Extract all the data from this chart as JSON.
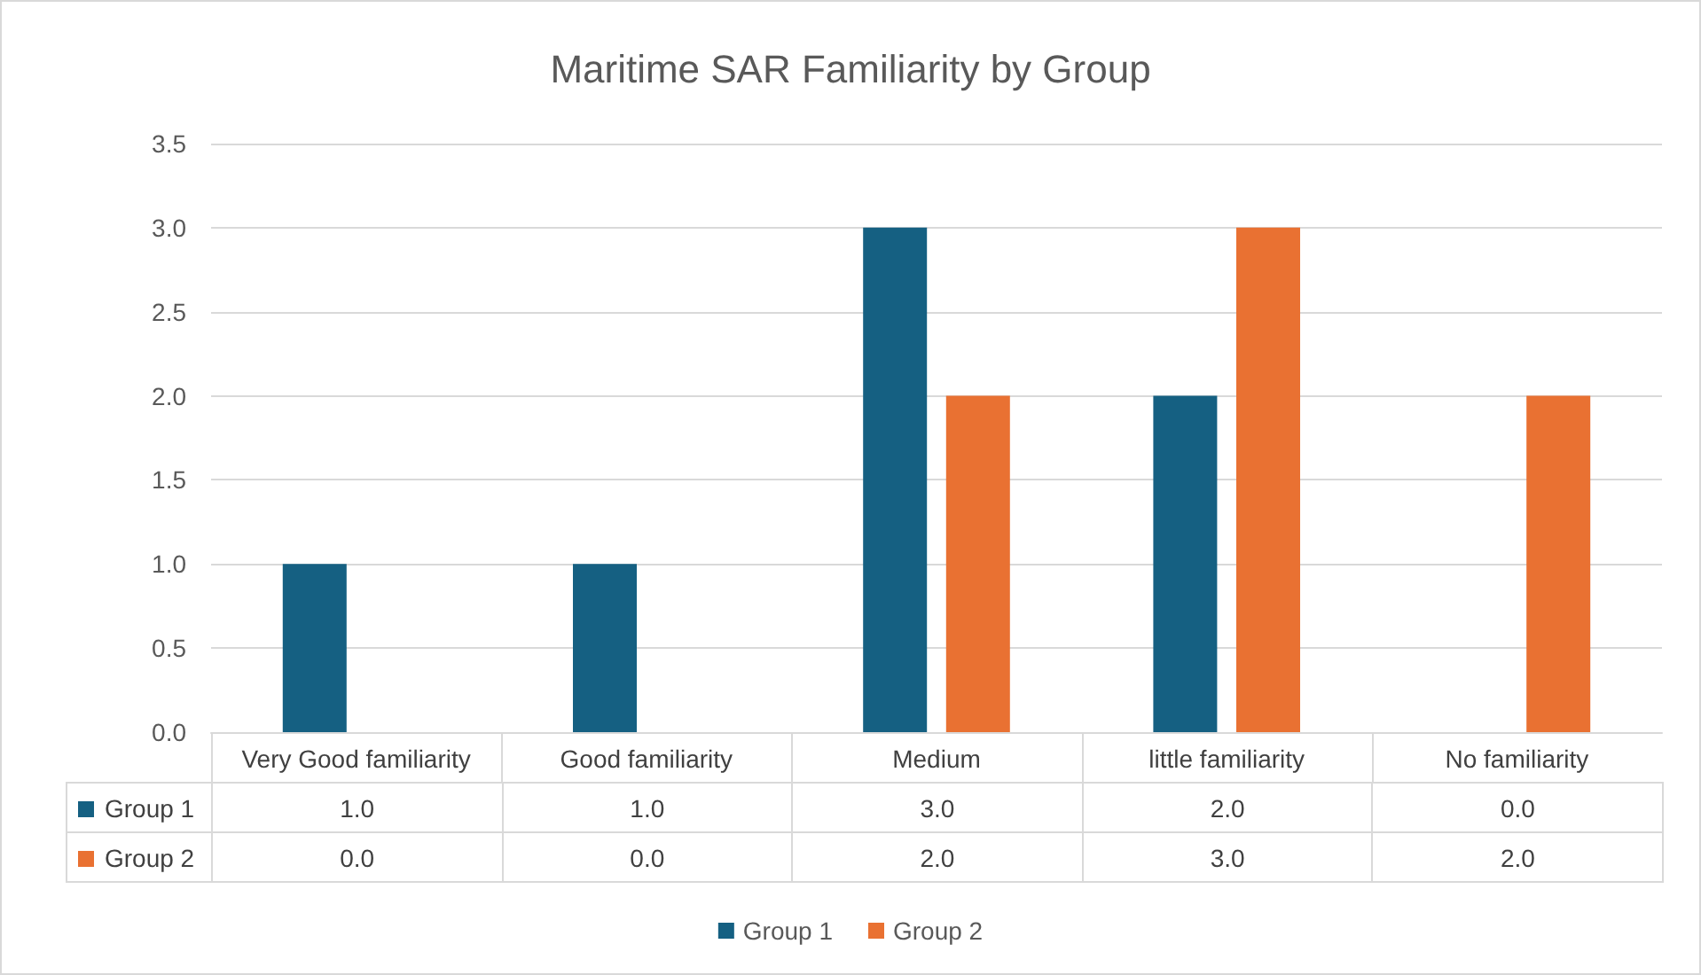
{
  "chart_data": {
    "type": "bar",
    "title": "Maritime SAR Familiarity by Group",
    "categories": [
      "Very Good familiarity",
      "Good familiarity",
      "Medium",
      "little familiarity",
      "No familiarity"
    ],
    "series": [
      {
        "name": "Group 1",
        "color": "#156082",
        "values": [
          1,
          1,
          3,
          2,
          0
        ],
        "value_labels": [
          "1.0",
          "1.0",
          "3.0",
          "2.0",
          "0.0"
        ]
      },
      {
        "name": "Group 2",
        "color": "#e97132",
        "values": [
          0,
          0,
          2,
          3,
          2
        ],
        "value_labels": [
          "0.0",
          "0.0",
          "2.0",
          "3.0",
          "2.0"
        ]
      }
    ],
    "ylim": [
      0,
      3.5
    ],
    "yticks": [
      {
        "value": 0,
        "label": "0.0"
      },
      {
        "value": 0.5,
        "label": "0.5"
      },
      {
        "value": 1,
        "label": "1.0"
      },
      {
        "value": 1.5,
        "label": "1.5"
      },
      {
        "value": 2,
        "label": "2.0"
      },
      {
        "value": 2.5,
        "label": "2.5"
      },
      {
        "value": 3,
        "label": "3.0"
      },
      {
        "value": 3.5,
        "label": "3.5"
      }
    ],
    "grid": "y",
    "legend": "bottom"
  }
}
